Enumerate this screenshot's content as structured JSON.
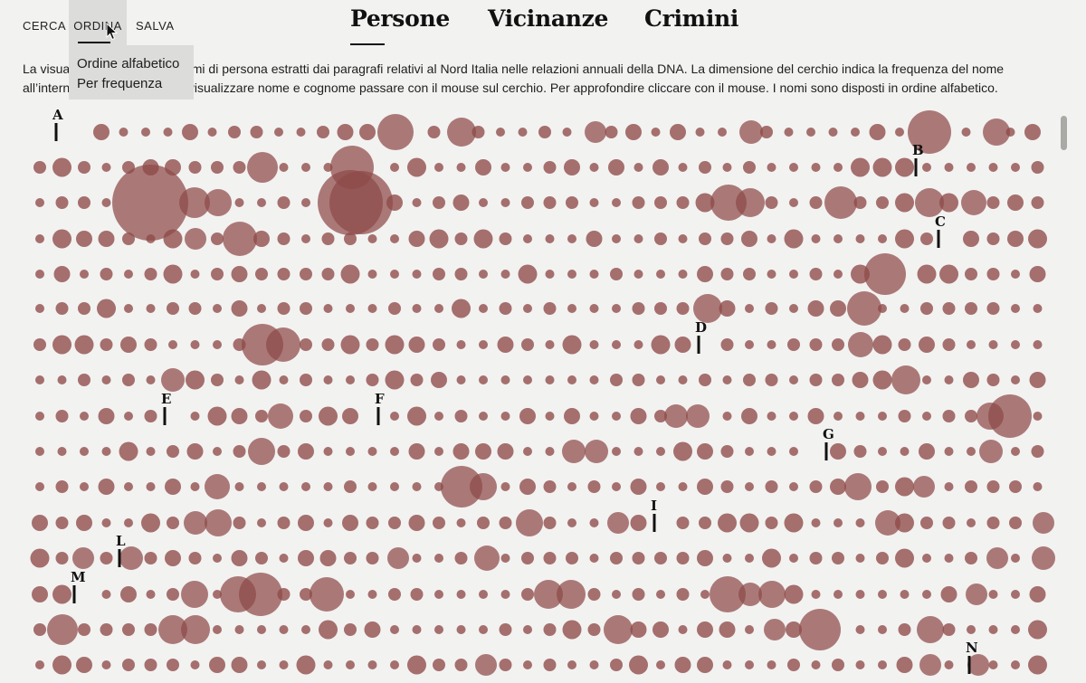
{
  "nav": {
    "cerca": "CERCA",
    "ordina": "ORDINA",
    "salva": "SALVA"
  },
  "ordina_menu": {
    "items": [
      "Ordine alfabetico",
      "Per frequenza"
    ]
  },
  "tabs": [
    "Persone",
    "Vicinanze",
    "Crimini"
  ],
  "active_tab": "Persone",
  "description": {
    "line1": "La visualizzazione mostra i nomi di persona estratti dai paragrafi relativi al Nord Italia nelle relazioni annuali della DNA. La dimensione del cerchio indica la frequenza del nome",
    "line2": "all’interno delle relazioni. Per visualizzare nome e cognome passare con il mouse sul cerchio. Per approfondire cliccare con il mouse. I nomi sono disposti in ordine alfabetico."
  },
  "letters": [
    "A",
    "B",
    "C",
    "D",
    "E",
    "F",
    "G",
    "I",
    "L",
    "M",
    "N"
  ],
  "colors": {
    "bubble": "#8e4a48",
    "background": "#f2f2f1",
    "menu_bg": "#dcdcda"
  },
  "icons": [
    "mouse-cursor-icon"
  ]
}
